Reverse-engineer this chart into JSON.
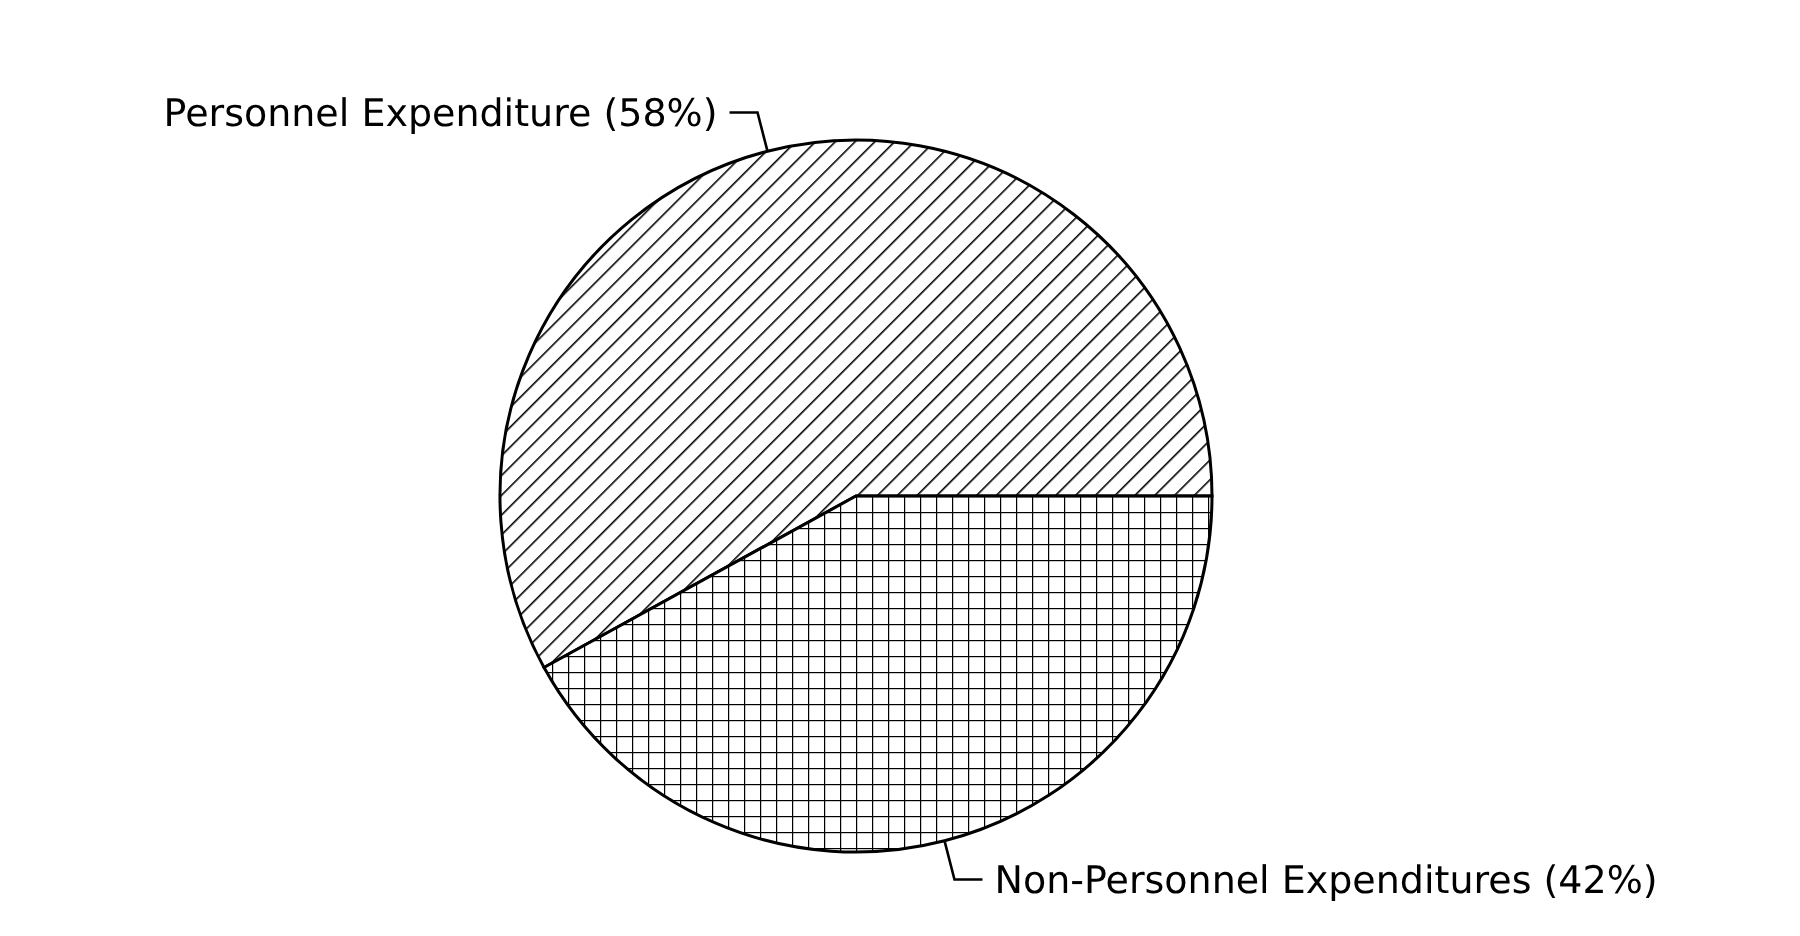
{
  "chart_data": {
    "type": "pie",
    "categories": [
      "Personnel Expenditure",
      "Non-Personnel Expenditures"
    ],
    "values": [
      58,
      42
    ],
    "value_labels": [
      "(58%)",
      "(42%)"
    ],
    "colors": [
      "#000000",
      "#000000"
    ]
  }
}
